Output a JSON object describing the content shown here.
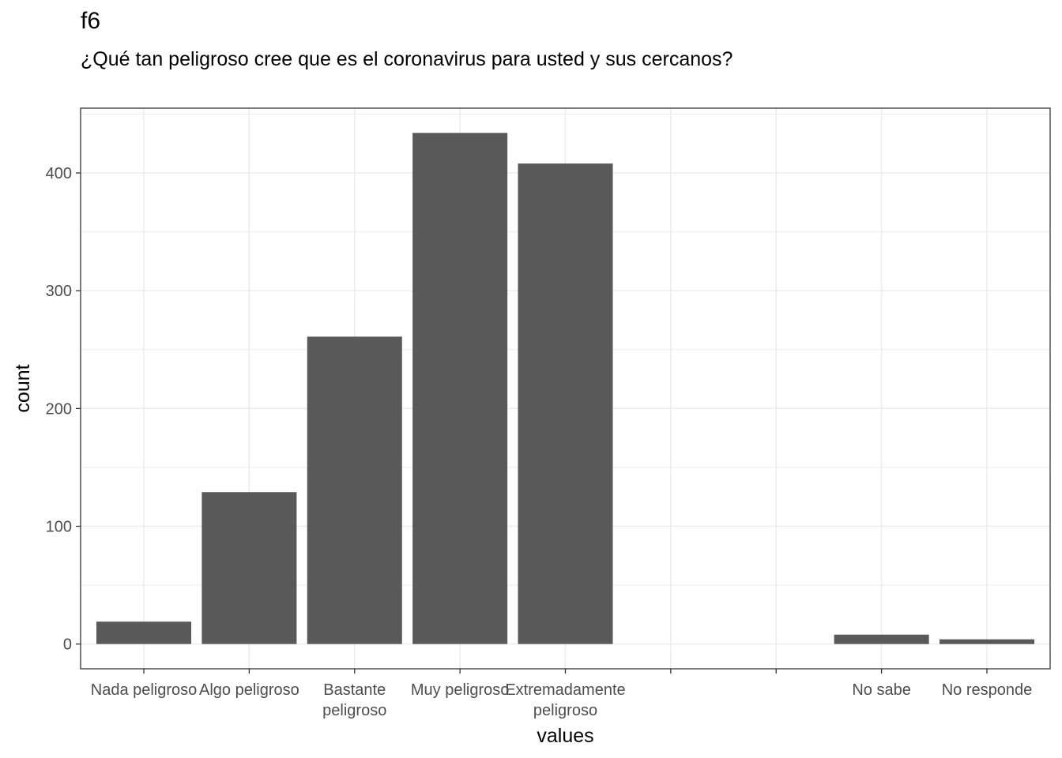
{
  "title": "f6",
  "subtitle": "¿Qué tan peligroso cree que es el coronavirus para usted y sus cercanos?",
  "chart_data": {
    "type": "bar",
    "categories": [
      [
        "Nada peligroso"
      ],
      [
        "Algo peligroso"
      ],
      [
        "Bastante",
        "peligroso"
      ],
      [
        "Muy peligroso"
      ],
      [
        "Extremadamente",
        "peligroso"
      ],
      [
        ""
      ],
      [
        ""
      ],
      [
        "No sabe"
      ],
      [
        "No responde"
      ]
    ],
    "category_positions": [
      1,
      2,
      3,
      4,
      5,
      6,
      7,
      8,
      9
    ],
    "values": [
      19,
      129,
      261,
      434,
      408,
      null,
      null,
      8,
      4
    ],
    "xlabel": "values",
    "ylabel": "count",
    "yticks": [
      0,
      100,
      200,
      300,
      400
    ],
    "ylim": [
      -21,
      455
    ],
    "bar_color": "#595959",
    "grid": true,
    "background": "#ffffff"
  }
}
